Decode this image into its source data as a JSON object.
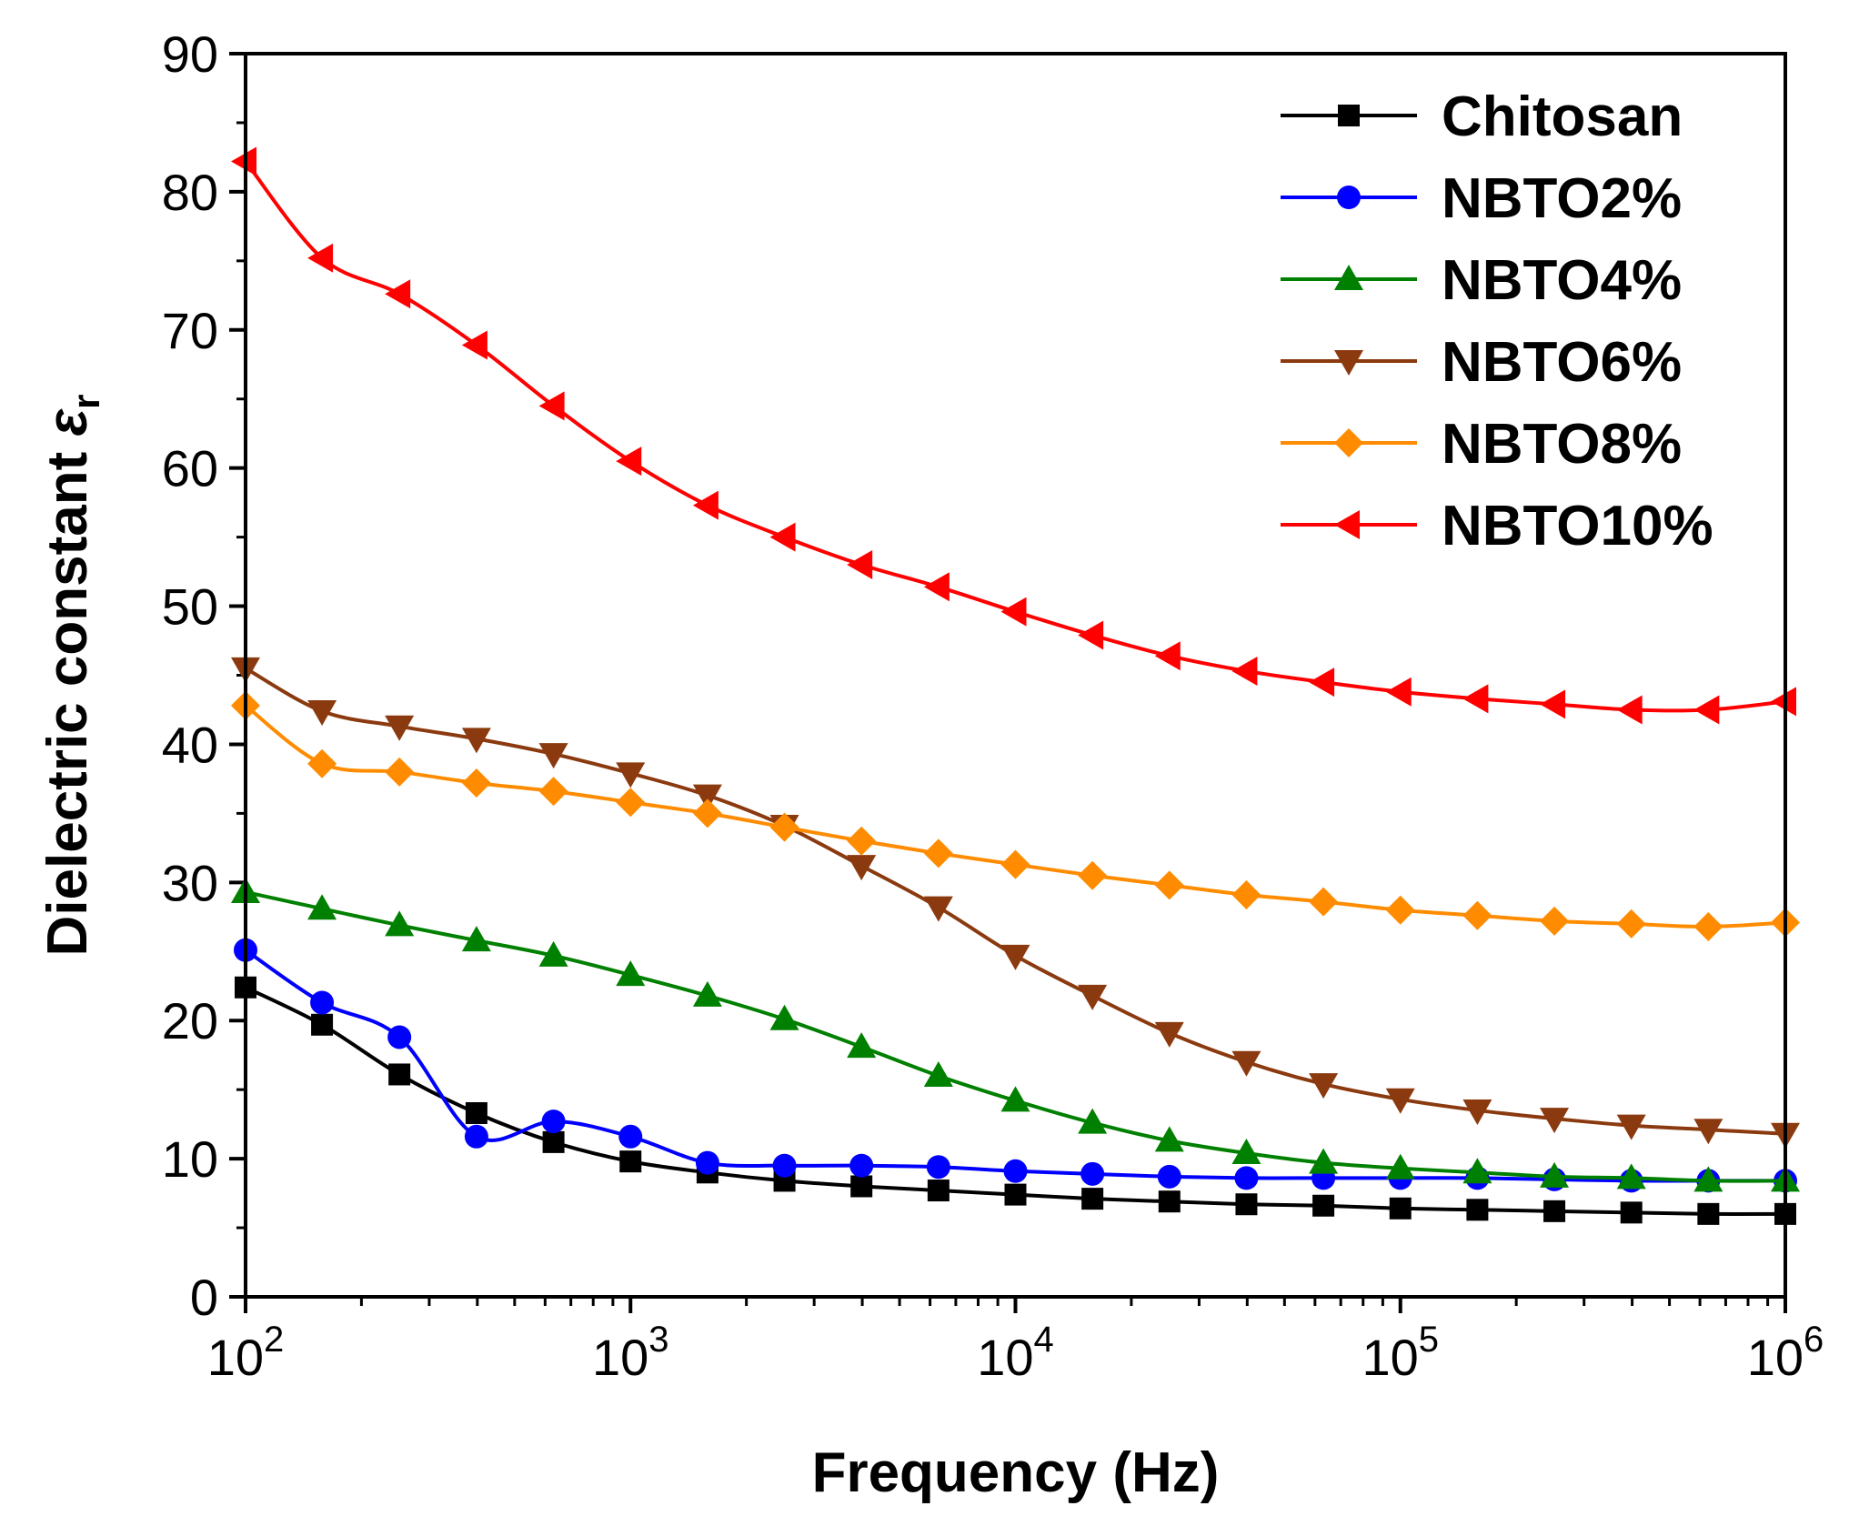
{
  "chart_data": {
    "type": "line",
    "title": "",
    "xlabel": "Frequency (Hz)",
    "ylabel_main": "Dielectric constant ",
    "ylabel_symbol": "ε",
    "ylabel_subscript": "r",
    "xscale": "log",
    "xlim": [
      100,
      1000000
    ],
    "ylim": [
      0,
      90
    ],
    "yticks": [
      0,
      10,
      20,
      30,
      40,
      50,
      60,
      70,
      80,
      90
    ],
    "xticks": [
      {
        "base": "10",
        "exp": "2",
        "value": 100
      },
      {
        "base": "10",
        "exp": "3",
        "value": 1000
      },
      {
        "base": "10",
        "exp": "4",
        "value": 10000
      },
      {
        "base": "10",
        "exp": "5",
        "value": 100000
      },
      {
        "base": "10",
        "exp": "6",
        "value": 1000000
      }
    ],
    "legend_position": "top-right",
    "grid": false,
    "x": [
      100,
      158,
      251,
      398,
      631,
      1000,
      1585,
      2512,
      3981,
      6310,
      10000,
      15849,
      25119,
      39811,
      63096,
      100000,
      158489,
      251189,
      398107,
      630957,
      1000000
    ],
    "series": [
      {
        "name": "Chitosan",
        "color": "#000000",
        "marker": "square",
        "values": [
          22.4,
          19.7,
          16.1,
          13.3,
          11.2,
          9.8,
          9.0,
          8.4,
          8.0,
          7.7,
          7.4,
          7.1,
          6.9,
          6.7,
          6.6,
          6.4,
          6.3,
          6.2,
          6.1,
          6.0,
          6.0
        ]
      },
      {
        "name": "NBTO2%",
        "color": "#0000ff",
        "marker": "circle",
        "values": [
          25.1,
          21.3,
          18.8,
          11.6,
          12.7,
          11.6,
          9.7,
          9.5,
          9.5,
          9.4,
          9.1,
          8.9,
          8.7,
          8.6,
          8.6,
          8.6,
          8.6,
          8.5,
          8.4,
          8.4,
          8.4
        ]
      },
      {
        "name": "NBTO4%",
        "color": "#008000",
        "marker": "triangle-up",
        "values": [
          29.3,
          28.1,
          26.9,
          25.8,
          24.7,
          23.3,
          21.8,
          20.1,
          18.1,
          16.0,
          14.2,
          12.6,
          11.3,
          10.4,
          9.7,
          9.3,
          9.0,
          8.7,
          8.6,
          8.4,
          8.4
        ]
      },
      {
        "name": "NBTO6%",
        "color": "#8b3a0f",
        "marker": "triangle-down",
        "values": [
          45.5,
          42.4,
          41.3,
          40.4,
          39.3,
          37.9,
          36.3,
          34.1,
          31.2,
          28.2,
          24.7,
          21.8,
          19.1,
          17.0,
          15.4,
          14.3,
          13.5,
          12.9,
          12.4,
          12.1,
          11.8
        ]
      },
      {
        "name": "NBTO8%",
        "color": "#ff8c00",
        "marker": "diamond",
        "values": [
          42.8,
          38.6,
          38.0,
          37.2,
          36.6,
          35.8,
          35.0,
          34.0,
          33.0,
          32.1,
          31.3,
          30.5,
          29.8,
          29.1,
          28.6,
          28.0,
          27.6,
          27.2,
          27.0,
          26.8,
          27.1
        ]
      },
      {
        "name": "NBTO10%",
        "color": "#ff0000",
        "marker": "triangle-left",
        "values": [
          82.2,
          75.2,
          72.6,
          68.9,
          64.5,
          60.5,
          57.3,
          55.0,
          53.0,
          51.4,
          49.6,
          47.9,
          46.4,
          45.3,
          44.5,
          43.8,
          43.3,
          42.9,
          42.5,
          42.5,
          43.1
        ]
      }
    ]
  }
}
